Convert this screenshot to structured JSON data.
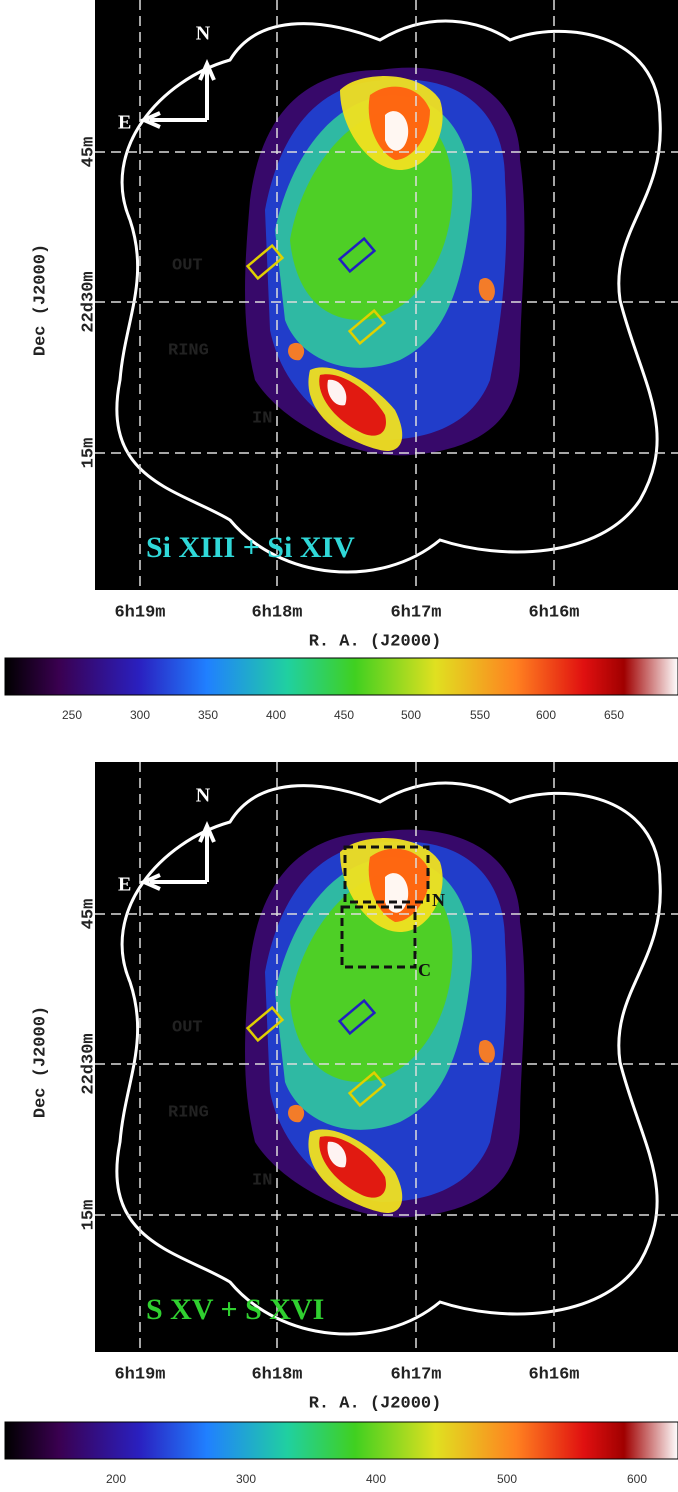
{
  "panels": [
    {
      "compass": {
        "north": "N",
        "east": "E"
      },
      "region_labels": [
        "OUT",
        "RING",
        "IN"
      ],
      "title": "Si XIII + Si XIV",
      "y_axis": {
        "title": "Dec  (J2000)",
        "ticks": [
          "45m",
          "22d30m",
          "15m"
        ]
      },
      "x_axis": {
        "title": "R. A.  (J2000)",
        "ticks": [
          "6h19m",
          "6h18m",
          "6h17m",
          "6h16m"
        ]
      },
      "colorbar_ticks": [
        250,
        300,
        350,
        400,
        450,
        500,
        550,
        600,
        650
      ]
    },
    {
      "compass": {
        "north": "N",
        "east": "E"
      },
      "region_labels": [
        "OUT",
        "RING",
        "IN"
      ],
      "box_labels": [
        "N",
        "C"
      ],
      "title": "S XV + S XVI",
      "y_axis": {
        "title": "Dec  (J2000)",
        "ticks": [
          "45m",
          "22d30m",
          "15m"
        ]
      },
      "x_axis": {
        "title": "R. A.  (J2000)",
        "ticks": [
          "6h19m",
          "6h18m",
          "6h17m",
          "6h16m"
        ]
      },
      "colorbar_ticks": [
        200,
        300,
        400,
        500,
        600
      ]
    }
  ]
}
